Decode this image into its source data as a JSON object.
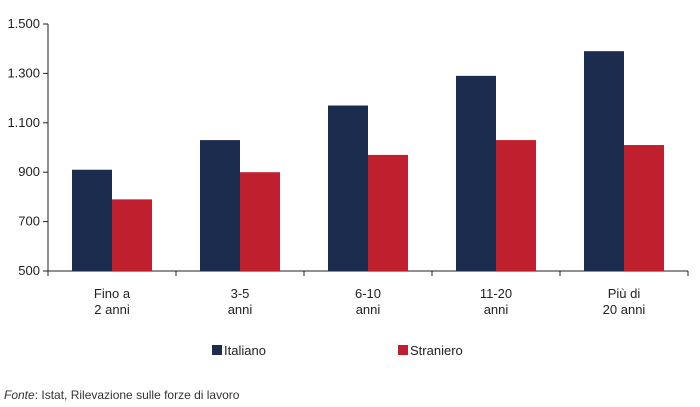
{
  "chart_data": {
    "type": "bar",
    "categories": [
      [
        "Fino a",
        "2 anni"
      ],
      [
        "3-5",
        "anni"
      ],
      [
        "6-10",
        "anni"
      ],
      [
        "11-20",
        "anni"
      ],
      [
        "Più di",
        "20 anni"
      ]
    ],
    "series": [
      {
        "name": "Italiano",
        "color": "#1b2c4e",
        "values": [
          910,
          1030,
          1170,
          1290,
          1390
        ]
      },
      {
        "name": "Straniero",
        "color": "#c0202e",
        "values": [
          790,
          900,
          970,
          1030,
          1010
        ]
      }
    ],
    "y_ticks": [
      "500",
      "700",
      "900",
      "1.100",
      "1.300",
      "1.500"
    ],
    "ylim": [
      500,
      1500
    ],
    "grid": false,
    "legend": "bottom"
  },
  "source": {
    "label": "Fonte",
    "text": ": Istat, Rilevazione sulle forze di lavoro"
  }
}
